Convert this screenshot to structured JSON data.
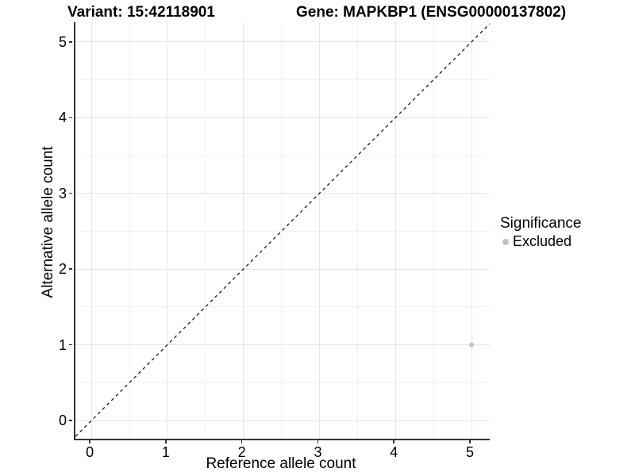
{
  "chart_data": {
    "type": "scatter",
    "title_left": "Variant: 15:42118901",
    "title_right": "Gene: MAPKBP1 (ENSG00000137802)",
    "xlabel": "Reference allele count",
    "ylabel": "Alternative allele count",
    "x_ticks": [
      0,
      1,
      2,
      3,
      4,
      5
    ],
    "y_ticks": [
      0,
      1,
      2,
      3,
      4,
      5
    ],
    "x_minor_gridlines": [
      0.5,
      1.5,
      2.5,
      3.5,
      4.5
    ],
    "y_minor_gridlines": [
      0.5,
      1.5,
      2.5,
      3.5,
      4.5
    ],
    "xlim": [
      -0.21,
      5.24
    ],
    "ylim": [
      -0.24,
      5.26
    ],
    "grid": "major+minor",
    "legend_position": "right",
    "series": [
      {
        "name": "Excluded",
        "color": "#c2c2c2",
        "points": [
          {
            "x": 5,
            "y": 1
          }
        ]
      }
    ],
    "reference_line": {
      "slope": 1,
      "intercept": 0,
      "style": "dashed",
      "color": "#1a1a1a"
    },
    "legend": {
      "title": "Significance",
      "entries": [
        {
          "label": "Excluded",
          "color": "#c2c2c2",
          "marker": "circle"
        }
      ]
    }
  },
  "colors": {
    "background": "#ffffff",
    "grid_major": "#e6e6e6",
    "grid_minor": "#f2f2f2",
    "axis_line": "#333333",
    "tick_mark": "#333333",
    "text": "#000000",
    "point": "#c2c2c2"
  }
}
